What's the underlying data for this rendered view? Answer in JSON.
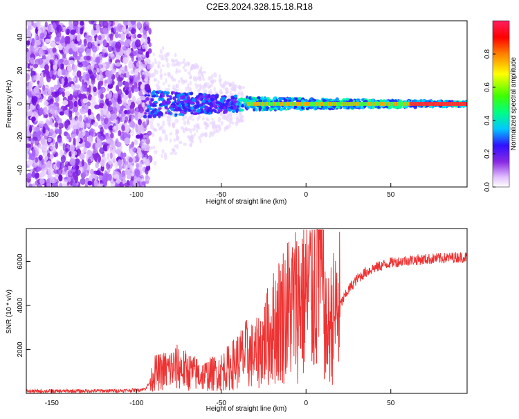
{
  "title": "C2E3.2024.328.15.18.R18",
  "chart_data": [
    {
      "type": "heatmap",
      "xlabel": "Height of straight line (km)",
      "ylabel": "Frequency (Hz)",
      "xlim": [
        -165,
        95
      ],
      "ylim": [
        -50,
        50
      ],
      "xticks": [
        -150,
        -100,
        -50,
        0,
        50
      ],
      "yticks": [
        -40,
        -20,
        0,
        20,
        40
      ],
      "colorbar": {
        "label": "Normalized spectral amplitude",
        "range": [
          0,
          1
        ],
        "ticks": [
          "0.0",
          "0.2",
          "0.4",
          "0.6",
          "0.8"
        ]
      },
      "grid": false
    },
    {
      "type": "line",
      "xlabel": "Height of straight line (km)",
      "ylabel": "SNR (10 * v/v)",
      "xlim": [
        -165,
        95
      ],
      "ylim": [
        0,
        7500
      ],
      "xticks": [
        -150,
        -100,
        -50,
        0,
        50
      ],
      "yticks": [
        2000,
        4000,
        6000
      ],
      "series_color": "#ee3333",
      "grid": false,
      "series": [
        {
          "x": [
            -165,
            -150,
            -130,
            -110,
            -100,
            -95,
            -92,
            -90,
            -85,
            -80,
            -75,
            -70,
            -65,
            -60,
            -55,
            -50,
            -45,
            -40,
            -35,
            -30,
            -25,
            -20,
            -15,
            -10,
            -5,
            0,
            5,
            8,
            10,
            12,
            15,
            20,
            25,
            30,
            35,
            40,
            50,
            60,
            70,
            80,
            90,
            95
          ],
          "y": [
            100,
            100,
            110,
            120,
            150,
            200,
            500,
            900,
            1000,
            1100,
            1200,
            1000,
            900,
            800,
            900,
            1000,
            1200,
            1500,
            1800,
            1700,
            2300,
            2900,
            3500,
            3900,
            4200,
            4500,
            4800,
            7200,
            4500,
            2600,
            3300,
            4000,
            4700,
            5200,
            5500,
            5700,
            5950,
            6050,
            6100,
            6150,
            6200,
            6200
          ]
        }
      ]
    }
  ]
}
